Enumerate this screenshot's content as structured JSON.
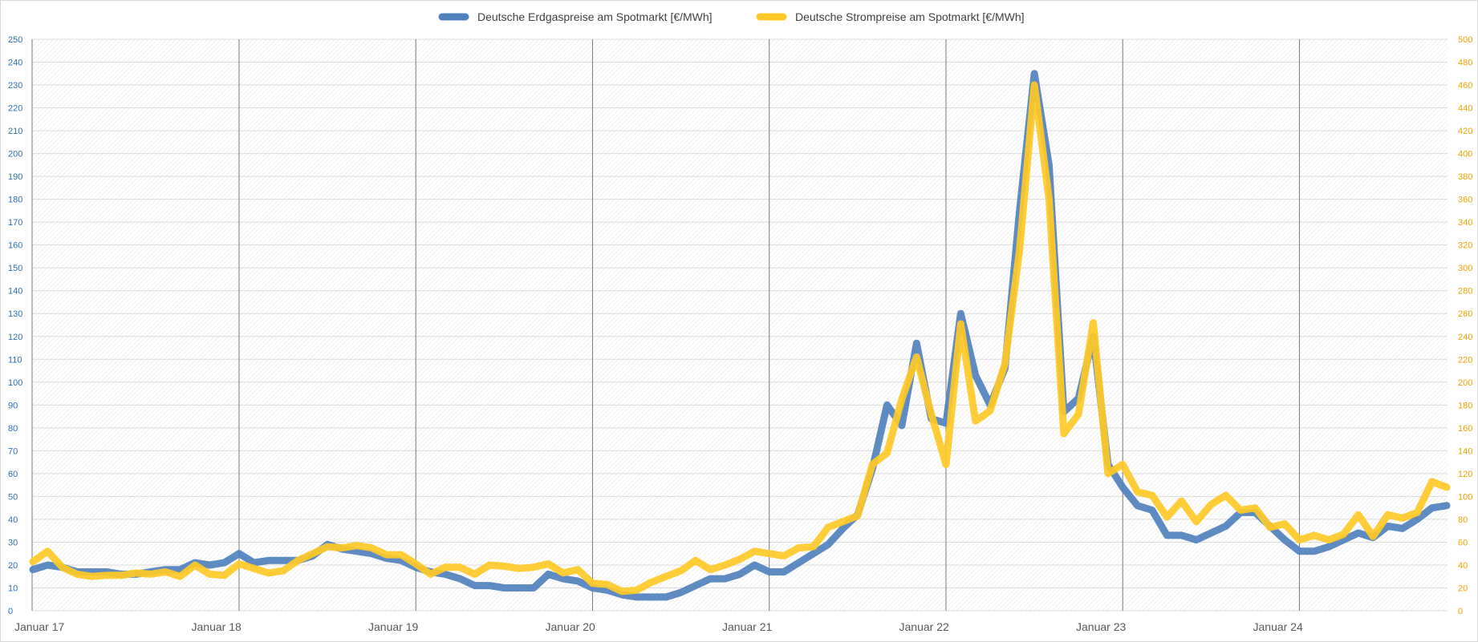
{
  "chart_data": {
    "type": "line",
    "x_labels": [
      "Januar 17",
      "Januar 18",
      "Januar 19",
      "Januar 20",
      "Januar 21",
      "Januar 22",
      "Januar 23",
      "Januar 24"
    ],
    "y_left": {
      "range": [
        0,
        250
      ],
      "step": 10,
      "color": "#2F6FB2"
    },
    "y_right": {
      "range": [
        0,
        500
      ],
      "step": 20,
      "color": "#E8A400"
    },
    "grid": true,
    "legend_position": "top-center",
    "series": [
      {
        "name": "Deutsche Erdgaspreise am Spotmarkt  [€/MWh]",
        "axis": "left",
        "color": "#4F81BD",
        "values": [
          18,
          20,
          19,
          17,
          17,
          17,
          16,
          16,
          17,
          18,
          18,
          21,
          20,
          21,
          25,
          21,
          22,
          22,
          22,
          24,
          29,
          27,
          26,
          25,
          23,
          22,
          19,
          17,
          16,
          14,
          11,
          11,
          10,
          10,
          10,
          16,
          14,
          13,
          10,
          9,
          7,
          6,
          6,
          6,
          8,
          11,
          14,
          14,
          16,
          20,
          17,
          17,
          21,
          25,
          29,
          36,
          42,
          62,
          90,
          81,
          117,
          84,
          82,
          130,
          103,
          90,
          106,
          175,
          235,
          195,
          87,
          93,
          120,
          64,
          54,
          46,
          44,
          33,
          33,
          31,
          34,
          37,
          43,
          43,
          37,
          31,
          26,
          26,
          28,
          31,
          34,
          32,
          37,
          36,
          40,
          45,
          46
        ]
      },
      {
        "name": "Deutsche Strompreise  am Spotmarkt  [€/MWh]",
        "axis": "right",
        "color": "#FFC926",
        "values": [
          43,
          52,
          38,
          32,
          30,
          31,
          31,
          33,
          32,
          34,
          30,
          40,
          32,
          31,
          41,
          37,
          33,
          35,
          44,
          50,
          56,
          55,
          57,
          55,
          49,
          49,
          41,
          32,
          38,
          38,
          32,
          40,
          39,
          37,
          38,
          41,
          33,
          36,
          24,
          23,
          17,
          18,
          25,
          30,
          35,
          44,
          36,
          40,
          45,
          52,
          50,
          48,
          55,
          56,
          73,
          78,
          83,
          128,
          138,
          185,
          222,
          172,
          128,
          251,
          166,
          175,
          216,
          316,
          460,
          360,
          155,
          172,
          252,
          120,
          128,
          104,
          101,
          82,
          96,
          78,
          93,
          101,
          88,
          90,
          73,
          76,
          62,
          66,
          62,
          67,
          84,
          65,
          84,
          81,
          86,
          113,
          108
        ]
      }
    ]
  }
}
